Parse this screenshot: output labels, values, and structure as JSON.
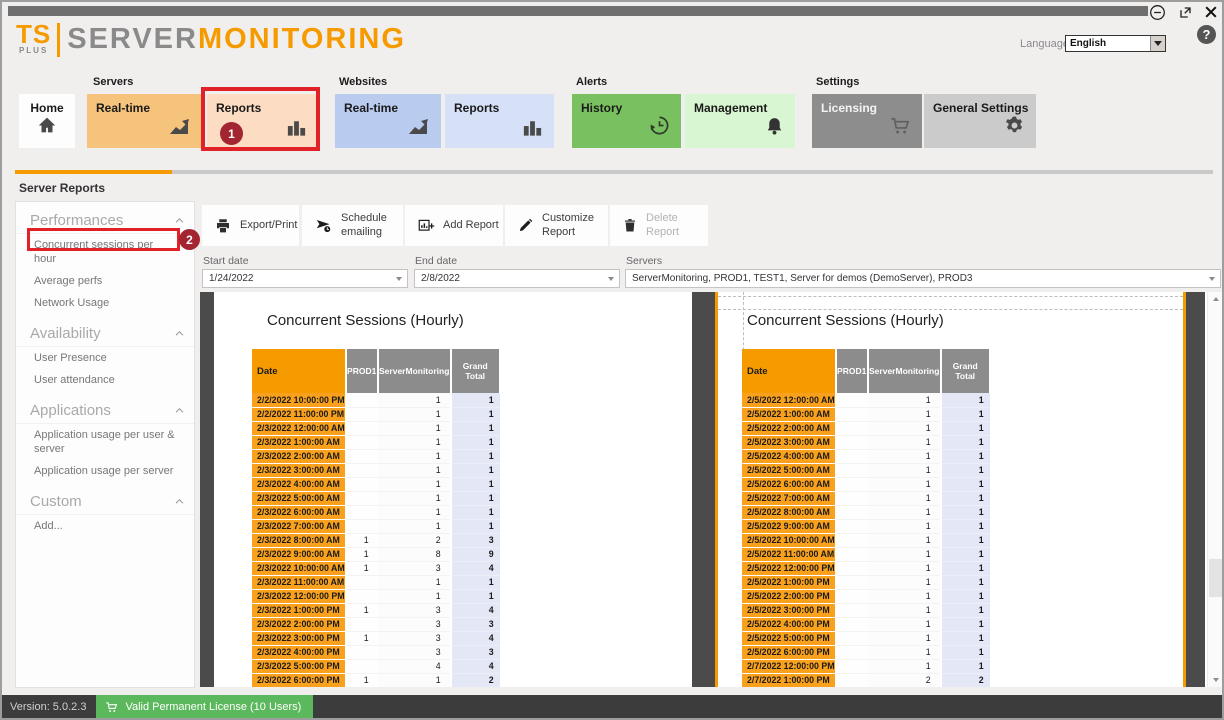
{
  "header": {
    "logo": {
      "ts": "TS",
      "plus": "PLUS",
      "server": "SERVER",
      "monitoring": "MONITORING"
    },
    "language_label": "Language",
    "language_value": "English",
    "help": "?"
  },
  "nav": {
    "home": {
      "label": "Home"
    },
    "groups": [
      {
        "label": "Servers",
        "tiles": [
          {
            "label": "Real-time"
          },
          {
            "label": "Reports"
          }
        ]
      },
      {
        "label": "Websites",
        "tiles": [
          {
            "label": "Real-time"
          },
          {
            "label": "Reports"
          }
        ]
      },
      {
        "label": "Alerts",
        "tiles": [
          {
            "label": "History"
          },
          {
            "label": "Management"
          }
        ]
      },
      {
        "label": "Settings",
        "tiles": [
          {
            "label": "Licensing"
          },
          {
            "label": "General Settings"
          }
        ]
      }
    ]
  },
  "annotations": {
    "step1": "1",
    "step2": "2"
  },
  "page_title": "Server Reports",
  "sidebar": {
    "sections": [
      {
        "title": "Performances",
        "items": [
          "Concurrent sessions per hour",
          "Average perfs",
          "Network Usage"
        ]
      },
      {
        "title": "Availability",
        "items": [
          "User Presence",
          "User attendance"
        ]
      },
      {
        "title": "Applications",
        "items": [
          "Application usage per user & server",
          "Application usage per server"
        ]
      },
      {
        "title": "Custom",
        "items": [
          "Add..."
        ]
      }
    ]
  },
  "toolbar": {
    "buttons": [
      {
        "label": "Export/Print"
      },
      {
        "label": "Schedule emailing"
      },
      {
        "label": "Add Report"
      },
      {
        "label": "Customize Report"
      },
      {
        "label": "Delete Report",
        "disabled": true
      }
    ]
  },
  "filters": {
    "start_label": "Start date",
    "start_value": "1/24/2022",
    "end_label": "End date",
    "end_value": "2/8/2022",
    "servers_label": "Servers",
    "servers_value": "ServerMonitoring, PROD1, TEST1, Server for demos (DemoServer), PROD3"
  },
  "report": {
    "pages": [
      {
        "title": "Concurrent Sessions (Hourly)",
        "columns": [
          "Date",
          "PROD1",
          "ServerMonitoring",
          "Grand Total"
        ],
        "rows": [
          [
            "2/2/2022 10:00:00 PM",
            "",
            "1",
            "1"
          ],
          [
            "2/2/2022 11:00:00 PM",
            "",
            "1",
            "1"
          ],
          [
            "2/3/2022 12:00:00 AM",
            "",
            "1",
            "1"
          ],
          [
            "2/3/2022 1:00:00 AM",
            "",
            "1",
            "1"
          ],
          [
            "2/3/2022 2:00:00 AM",
            "",
            "1",
            "1"
          ],
          [
            "2/3/2022 3:00:00 AM",
            "",
            "1",
            "1"
          ],
          [
            "2/3/2022 4:00:00 AM",
            "",
            "1",
            "1"
          ],
          [
            "2/3/2022 5:00:00 AM",
            "",
            "1",
            "1"
          ],
          [
            "2/3/2022 6:00:00 AM",
            "",
            "1",
            "1"
          ],
          [
            "2/3/2022 7:00:00 AM",
            "",
            "1",
            "1"
          ],
          [
            "2/3/2022 8:00:00 AM",
            "1",
            "2",
            "3"
          ],
          [
            "2/3/2022 9:00:00 AM",
            "1",
            "8",
            "9"
          ],
          [
            "2/3/2022 10:00:00 AM",
            "1",
            "3",
            "4"
          ],
          [
            "2/3/2022 11:00:00 AM",
            "",
            "1",
            "1"
          ],
          [
            "2/3/2022 12:00:00 PM",
            "",
            "1",
            "1"
          ],
          [
            "2/3/2022 1:00:00 PM",
            "1",
            "3",
            "4"
          ],
          [
            "2/3/2022 2:00:00 PM",
            "",
            "3",
            "3"
          ],
          [
            "2/3/2022 3:00:00 PM",
            "1",
            "3",
            "4"
          ],
          [
            "2/3/2022 4:00:00 PM",
            "",
            "3",
            "3"
          ],
          [
            "2/3/2022 5:00:00 PM",
            "",
            "4",
            "4"
          ],
          [
            "2/3/2022 6:00:00 PM",
            "1",
            "1",
            "2"
          ]
        ]
      },
      {
        "title": "Concurrent Sessions (Hourly)",
        "columns": [
          "Date",
          "PROD1",
          "ServerMonitoring",
          "Grand Total"
        ],
        "rows": [
          [
            "2/5/2022 12:00:00 AM",
            "",
            "1",
            "1"
          ],
          [
            "2/5/2022 1:00:00 AM",
            "",
            "1",
            "1"
          ],
          [
            "2/5/2022 2:00:00 AM",
            "",
            "1",
            "1"
          ],
          [
            "2/5/2022 3:00:00 AM",
            "",
            "1",
            "1"
          ],
          [
            "2/5/2022 4:00:00 AM",
            "",
            "1",
            "1"
          ],
          [
            "2/5/2022 5:00:00 AM",
            "",
            "1",
            "1"
          ],
          [
            "2/5/2022 6:00:00 AM",
            "",
            "1",
            "1"
          ],
          [
            "2/5/2022 7:00:00 AM",
            "",
            "1",
            "1"
          ],
          [
            "2/5/2022 8:00:00 AM",
            "",
            "1",
            "1"
          ],
          [
            "2/5/2022 9:00:00 AM",
            "",
            "1",
            "1"
          ],
          [
            "2/5/2022 10:00:00 AM",
            "",
            "1",
            "1"
          ],
          [
            "2/5/2022 11:00:00 AM",
            "",
            "1",
            "1"
          ],
          [
            "2/5/2022 12:00:00 PM",
            "",
            "1",
            "1"
          ],
          [
            "2/5/2022 1:00:00 PM",
            "",
            "1",
            "1"
          ],
          [
            "2/5/2022 2:00:00 PM",
            "",
            "1",
            "1"
          ],
          [
            "2/5/2022 3:00:00 PM",
            "",
            "1",
            "1"
          ],
          [
            "2/5/2022 4:00:00 PM",
            "",
            "1",
            "1"
          ],
          [
            "2/5/2022 5:00:00 PM",
            "",
            "1",
            "1"
          ],
          [
            "2/5/2022 6:00:00 PM",
            "",
            "1",
            "1"
          ],
          [
            "2/7/2022 12:00:00 PM",
            "",
            "1",
            "1"
          ],
          [
            "2/7/2022 1:00:00 PM",
            "",
            "2",
            "2"
          ]
        ]
      }
    ]
  },
  "statusbar": {
    "version": "Version: 5.0.2.3",
    "license": "Valid Permanent License (10 Users)"
  },
  "colors": {
    "brand_orange": "#F59B00",
    "annotation_red": "#E02128",
    "badge_red": "#A32531",
    "license_green": "#5CB85C",
    "table_header_gray": "#8C8C8C",
    "grand_total_bg": "#E4E8F6"
  }
}
